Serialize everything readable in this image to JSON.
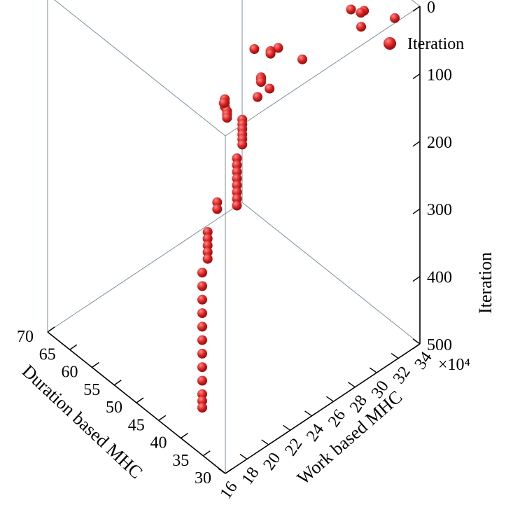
{
  "chart_data": {
    "type": "scatter",
    "projection": "3d",
    "colors": {
      "marker": "#d81e1e",
      "marker_highlight": "#ff8a8a",
      "box": "#7a8ea0",
      "axis": "#000000"
    },
    "legend": {
      "label": "Iteration",
      "placement": "top-right",
      "icon": "red-sphere-marker"
    },
    "axes": {
      "x": {
        "label": "Duration based MHC",
        "ticks": [
          "30",
          "35",
          "40",
          "45",
          "50",
          "55",
          "60",
          "65",
          "70"
        ],
        "range": [
          30,
          70
        ]
      },
      "y": {
        "label": "Work based MHC",
        "ticks": [
          "16",
          "18",
          "20",
          "22",
          "24",
          "26",
          "28",
          "30",
          "32",
          "34"
        ],
        "range": [
          16,
          34
        ],
        "multiplier_label": "×10⁴"
      },
      "z": {
        "label": "Iteration",
        "ticks": [
          "0",
          "100",
          "200",
          "300",
          "400",
          "500"
        ],
        "range": [
          0,
          500
        ],
        "reversed": true
      }
    },
    "series": [
      {
        "name": "Iteration",
        "points": [
          [
            40.5,
            23.0,
            1
          ],
          [
            37.0,
            30.5,
            4
          ],
          [
            33.5,
            30.0,
            6
          ],
          [
            36.0,
            31.0,
            9
          ],
          [
            32.0,
            32.5,
            12
          ],
          [
            36.5,
            31.5,
            14
          ],
          [
            40.0,
            25.0,
            18
          ],
          [
            40.5,
            24.5,
            20
          ],
          [
            40.5,
            24.5,
            22
          ],
          [
            40.5,
            24.5,
            24
          ],
          [
            37.0,
            26.0,
            30
          ],
          [
            39.0,
            23.0,
            35
          ],
          [
            39.0,
            23.0,
            38
          ],
          [
            39.0,
            23.0,
            42
          ],
          [
            42.5,
            21.0,
            70
          ],
          [
            41.0,
            23.5,
            80
          ],
          [
            39.5,
            24.0,
            65
          ],
          [
            43.5,
            21.5,
            75
          ],
          [
            43.5,
            21.5,
            80
          ],
          [
            43.5,
            21.5,
            86
          ],
          [
            43.0,
            21.5,
            90
          ],
          [
            43.0,
            21.5,
            95
          ],
          [
            43.0,
            21.5,
            100
          ],
          [
            42.0,
            22.5,
            108
          ],
          [
            42.0,
            22.5,
            115
          ],
          [
            42.0,
            22.5,
            122
          ],
          [
            42.0,
            22.5,
            130
          ],
          [
            42.0,
            22.5,
            137
          ],
          [
            42.0,
            22.5,
            145
          ],
          [
            42.0,
            22.0,
            160
          ],
          [
            42.0,
            22.0,
            170
          ],
          [
            42.0,
            22.0,
            180
          ],
          [
            42.0,
            22.0,
            190
          ],
          [
            42.0,
            22.0,
            200
          ],
          [
            42.0,
            22.0,
            210
          ],
          [
            42.0,
            22.0,
            220
          ],
          [
            42.0,
            22.0,
            230
          ],
          [
            44.0,
            21.0,
            225
          ],
          [
            44.0,
            21.0,
            235
          ],
          [
            42.5,
            19.5,
            245
          ],
          [
            42.5,
            19.5,
            255
          ],
          [
            42.5,
            19.5,
            265
          ],
          [
            42.5,
            19.5,
            275
          ],
          [
            42.5,
            19.5,
            285
          ],
          [
            42.5,
            19.0,
            300
          ],
          [
            42.5,
            19.0,
            320
          ],
          [
            42.5,
            19.0,
            340
          ],
          [
            42.5,
            19.0,
            360
          ],
          [
            42.5,
            19.0,
            380
          ],
          [
            42.5,
            19.0,
            400
          ],
          [
            42.5,
            19.0,
            420
          ],
          [
            42.5,
            19.0,
            440
          ],
          [
            42.5,
            19.0,
            460
          ],
          [
            42.5,
            19.0,
            480
          ],
          [
            42.5,
            19.0,
            490
          ],
          [
            42.5,
            19.0,
            500
          ]
        ]
      }
    ],
    "grid": false
  }
}
